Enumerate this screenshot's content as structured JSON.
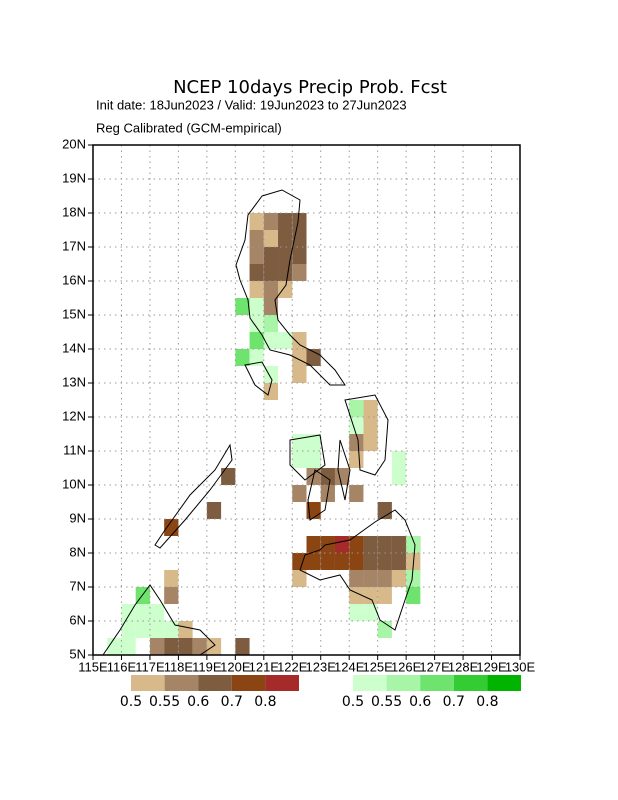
{
  "map": {
    "title": "NCEP 10days Precip Prob. Fcst",
    "subtitle": "Init date: 18Jun2023 / Valid: 19Jun2023 to 27Jun2023",
    "note": "Reg Calibrated (GCM-empirical)",
    "xlim": [
      115,
      130
    ],
    "ylim": [
      5,
      20
    ],
    "xticks": [
      {
        "value": 115,
        "label": "115E"
      },
      {
        "value": 116,
        "label": "116E"
      },
      {
        "value": 117,
        "label": "117E"
      },
      {
        "value": 118,
        "label": "118E"
      },
      {
        "value": 119,
        "label": "119E"
      },
      {
        "value": 120,
        "label": "120E"
      },
      {
        "value": 121,
        "label": "121E"
      },
      {
        "value": 122,
        "label": "122E"
      },
      {
        "value": 123,
        "label": "123E"
      },
      {
        "value": 124,
        "label": "124E"
      },
      {
        "value": 125,
        "label": "125E"
      },
      {
        "value": 126,
        "label": "126E"
      },
      {
        "value": 127,
        "label": "127E"
      },
      {
        "value": 128,
        "label": "128E"
      },
      {
        "value": 129,
        "label": "129E"
      },
      {
        "value": 130,
        "label": "130E"
      }
    ],
    "yticks": [
      {
        "value": 5,
        "label": "5N"
      },
      {
        "value": 6,
        "label": "6N"
      },
      {
        "value": 7,
        "label": "7N"
      },
      {
        "value": 8,
        "label": "8N"
      },
      {
        "value": 9,
        "label": "9N"
      },
      {
        "value": 10,
        "label": "10N"
      },
      {
        "value": 11,
        "label": "11N"
      },
      {
        "value": 12,
        "label": "12N"
      },
      {
        "value": 13,
        "label": "13N"
      },
      {
        "value": 14,
        "label": "14N"
      },
      {
        "value": 15,
        "label": "15N"
      },
      {
        "value": 16,
        "label": "16N"
      },
      {
        "value": 17,
        "label": "17N"
      },
      {
        "value": 18,
        "label": "18N"
      },
      {
        "value": 19,
        "label": "19N"
      },
      {
        "value": 20,
        "label": "20N"
      }
    ],
    "grid": true,
    "cell_size": 0.5,
    "dry": {
      "levels": [
        0.5,
        0.55,
        0.6,
        0.7,
        0.8
      ],
      "colors": [
        "#d7b98a",
        "#a68466",
        "#7d5c40",
        "#8b4513",
        "#a52a2a"
      ],
      "cells": [
        [
          120.5,
          17.5,
          0.5
        ],
        [
          121,
          17.5,
          0.55
        ],
        [
          121.5,
          17.5,
          0.6
        ],
        [
          122,
          17.5,
          0.6
        ],
        [
          120.5,
          17,
          0.55
        ],
        [
          121,
          17,
          0.5
        ],
        [
          121.5,
          17,
          0.6
        ],
        [
          122,
          17,
          0.6
        ],
        [
          120.5,
          16.5,
          0.55
        ],
        [
          121,
          16.5,
          0.6
        ],
        [
          121.5,
          16.5,
          0.6
        ],
        [
          122,
          16.5,
          0.6
        ],
        [
          120.5,
          16,
          0.6
        ],
        [
          121,
          16,
          0.6
        ],
        [
          121.5,
          16,
          0.6
        ],
        [
          122,
          16,
          0.55
        ],
        [
          120.5,
          15.5,
          0.5
        ],
        [
          121,
          15.5,
          0.55
        ],
        [
          121.5,
          15.5,
          0.5
        ],
        [
          120.5,
          15,
          0.55
        ],
        [
          121,
          15,
          0.55
        ],
        [
          121,
          14.5,
          0.5
        ],
        [
          122,
          14,
          0.5
        ],
        [
          122,
          13.5,
          0.5
        ],
        [
          122.5,
          13.5,
          0.6
        ],
        [
          122,
          13,
          0.5
        ],
        [
          121,
          12.5,
          0.5
        ],
        [
          124.5,
          12,
          0.5
        ],
        [
          124.5,
          11.5,
          0.5
        ],
        [
          124,
          11,
          0.55
        ],
        [
          124.5,
          11,
          0.5
        ],
        [
          122.5,
          10.5,
          0.6
        ],
        [
          124,
          10.5,
          0.5
        ],
        [
          122.5,
          10,
          0.55
        ],
        [
          123,
          10,
          0.6
        ],
        [
          123.5,
          10,
          0.55
        ],
        [
          119.5,
          10,
          0.6
        ],
        [
          122,
          9.5,
          0.55
        ],
        [
          123,
          9.5,
          0.55
        ],
        [
          124,
          9.5,
          0.55
        ],
        [
          122.5,
          9,
          0.7
        ],
        [
          125,
          9,
          0.6
        ],
        [
          119,
          9,
          0.6
        ],
        [
          117.5,
          8.5,
          0.7
        ],
        [
          122.5,
          8,
          0.7
        ],
        [
          123,
          8,
          0.7
        ],
        [
          123.5,
          8,
          0.8
        ],
        [
          124,
          8,
          0.7
        ],
        [
          124.5,
          8,
          0.6
        ],
        [
          125,
          8,
          0.6
        ],
        [
          125.5,
          8,
          0.6
        ],
        [
          126,
          8,
          0.55
        ],
        [
          122,
          7.5,
          0.7
        ],
        [
          122.5,
          7.5,
          0.7
        ],
        [
          123,
          7.5,
          0.7
        ],
        [
          123.5,
          7.5,
          0.7
        ],
        [
          124,
          7.5,
          0.7
        ],
        [
          124.5,
          7.5,
          0.6
        ],
        [
          125,
          7.5,
          0.6
        ],
        [
          125.5,
          7.5,
          0.6
        ],
        [
          126,
          7.5,
          0.5
        ],
        [
          122,
          7,
          0.5
        ],
        [
          124,
          7,
          0.55
        ],
        [
          124.5,
          7,
          0.55
        ],
        [
          125,
          7,
          0.55
        ],
        [
          125.5,
          7,
          0.5
        ],
        [
          124,
          6.5,
          0.5
        ],
        [
          124.5,
          6.5,
          0.5
        ],
        [
          125,
          6.5,
          0.5
        ],
        [
          117.5,
          7,
          0.5
        ],
        [
          117.5,
          6.5,
          0.55
        ],
        [
          118,
          5.5,
          0.5
        ],
        [
          117,
          5,
          0.55
        ],
        [
          117.5,
          5,
          0.6
        ],
        [
          118,
          5,
          0.6
        ],
        [
          118.5,
          5,
          0.55
        ],
        [
          119,
          5,
          0.5
        ],
        [
          120,
          5,
          0.6
        ]
      ]
    },
    "wet": {
      "levels": [
        0.5,
        0.55,
        0.6,
        0.7,
        0.8
      ],
      "colors": [
        "#ccffcc",
        "#a8f5a8",
        "#6ee46e",
        "#33cc33",
        "#00b400"
      ],
      "cells": [
        [
          120,
          15,
          0.6
        ],
        [
          120.5,
          15,
          0.5
        ],
        [
          120.5,
          14.5,
          0.5
        ],
        [
          121,
          14.5,
          0.55
        ],
        [
          120.5,
          14,
          0.6
        ],
        [
          121,
          14,
          0.5
        ],
        [
          121.5,
          14,
          0.5
        ],
        [
          120,
          13.5,
          0.6
        ],
        [
          120.5,
          13.5,
          0.5
        ],
        [
          121,
          13,
          0.5
        ],
        [
          122,
          11,
          0.5
        ],
        [
          122.5,
          11,
          0.5
        ],
        [
          122,
          10.5,
          0.5
        ],
        [
          122.5,
          10.5,
          0.5
        ],
        [
          124,
          12,
          0.55
        ],
        [
          124,
          11.5,
          0.5
        ],
        [
          125.5,
          10.5,
          0.5
        ],
        [
          125.5,
          10,
          0.5
        ],
        [
          126,
          8,
          0.55
        ],
        [
          126,
          7,
          0.55
        ],
        [
          126,
          6.5,
          0.6
        ],
        [
          124,
          6,
          0.5
        ],
        [
          124.5,
          6,
          0.5
        ],
        [
          125,
          5.5,
          0.55
        ],
        [
          116.5,
          6.5,
          0.6
        ],
        [
          116,
          6,
          0.5
        ],
        [
          116.5,
          6,
          0.5
        ],
        [
          117,
          6,
          0.5
        ],
        [
          116,
          5.5,
          0.5
        ],
        [
          116.5,
          5.5,
          0.5
        ],
        [
          117,
          5.5,
          0.5
        ],
        [
          117.5,
          5.5,
          0.5
        ],
        [
          115.5,
          5,
          0.5
        ],
        [
          116,
          5,
          0.5
        ]
      ]
    }
  }
}
